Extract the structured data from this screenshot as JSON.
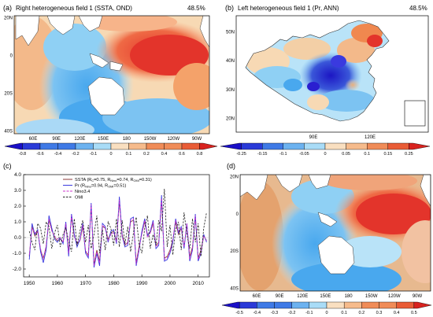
{
  "colors": {
    "cool_deep": "#2a1fd0",
    "cool_mid": "#49a8ee",
    "cool_light": "#b9e3f8",
    "warm_light": "#f7d9b4",
    "warm_mid": "#f0884f",
    "warm_deep": "#e3342b",
    "land": "#ffffff",
    "line_ssta": "#8b3a3a",
    "line_pr": "#3a3adf",
    "line_nino": "#cc33cc",
    "line_omi": "#222222"
  },
  "panels": {
    "a": {
      "label": "(a)",
      "title": "Right heterogeneous field 1 (SSTA, OND)",
      "percent": "48.5%",
      "lat_ticks": [
        "20N",
        "0",
        "20S",
        "40S"
      ],
      "lon_ticks": [
        "60E",
        "90E",
        "120E",
        "150E",
        "180",
        "150W",
        "120W",
        "90W"
      ],
      "colorbar": [
        "-0.8",
        "-0.6",
        "-0.4",
        "-0.2",
        "-0.1",
        "0",
        "0.1",
        "0.2",
        "0.4",
        "0.6",
        "0.8"
      ]
    },
    "b": {
      "label": "(b)",
      "title": "Left heterogeneous field 1 (Pr, ANN)",
      "percent": "48.5%",
      "lat_ticks": [
        "50N",
        "40N",
        "30N",
        "20N"
      ],
      "lon_ticks": [
        "90E",
        "120E"
      ],
      "colorbar": [
        "-0.25",
        "-0.15",
        "-0.1",
        "-0.05",
        "0",
        "0.05",
        "0.1",
        "0.15",
        "0.25"
      ]
    },
    "d": {
      "label": "(d)",
      "lat_ticks": [
        "20N",
        "0",
        "20S",
        "40S"
      ],
      "lon_ticks": [
        "60E",
        "90E",
        "120E",
        "150E",
        "180",
        "150W",
        "120W",
        "90W"
      ],
      "colorbar": [
        "-0.5",
        "-0.4",
        "-0.3",
        "-0.2",
        "-0.1",
        "0",
        "0.1",
        "0.2",
        "0.3",
        "0.4",
        "0.5"
      ]
    }
  },
  "chart_data": {
    "type": "line",
    "panel_label": "(c)",
    "xlim": [
      1948,
      2014
    ],
    "ylim": [
      -2.5,
      4.0
    ],
    "x_ticks": [
      1950,
      1960,
      1970,
      1980,
      1990,
      2000,
      2010
    ],
    "y_ticks": [
      "4.0",
      "3.0",
      "2.0",
      "1.0",
      "0.0",
      "-1.0",
      "-2.0"
    ],
    "legend": [
      {
        "name": "SSTA  (R",
        "sub1": "C",
        "mid": "=0.75, R",
        "sub2": "Nino",
        "mid2": "=0.74, R",
        "sub3": "OMI",
        "tail": "=0.31)"
      },
      {
        "name": "Pr  (R",
        "sub1": "Nino",
        "mid": "=0.94, R",
        "sub2": "OMI",
        "mid2": "=0.51)",
        "sub3": "",
        "tail": ""
      },
      {
        "name": "Nino3.4",
        "sub1": "",
        "mid": "",
        "sub2": "",
        "mid2": "",
        "sub3": "",
        "tail": ""
      },
      {
        "name": "OMI",
        "sub1": "",
        "mid": "",
        "sub2": "",
        "mid2": "",
        "sub3": "",
        "tail": ""
      }
    ],
    "x": [
      1950,
      1951,
      1952,
      1953,
      1954,
      1955,
      1956,
      1957,
      1958,
      1959,
      1960,
      1961,
      1962,
      1963,
      1964,
      1965,
      1966,
      1967,
      1968,
      1969,
      1970,
      1971,
      1972,
      1973,
      1974,
      1975,
      1976,
      1977,
      1978,
      1979,
      1980,
      1981,
      1982,
      1983,
      1984,
      1985,
      1986,
      1987,
      1988,
      1989,
      1990,
      1991,
      1992,
      1993,
      1994,
      1995,
      1996,
      1997,
      1998,
      1999,
      2000,
      2001,
      2002,
      2003,
      2004,
      2005,
      2006,
      2007,
      2008,
      2009,
      2010,
      2011,
      2012,
      2013
    ],
    "series": [
      {
        "name": "SSTA",
        "values": [
          -1.2,
          0.7,
          0.1,
          0.4,
          -0.8,
          -1.3,
          -0.6,
          1.1,
          0.5,
          0.0,
          -0.2,
          -0.1,
          -0.3,
          0.8,
          -0.9,
          1.3,
          0.1,
          -0.4,
          -0.2,
          0.7,
          -0.9,
          -1.1,
          2.0,
          -1.7,
          -0.8,
          -1.5,
          0.7,
          0.6,
          -0.1,
          0.3,
          0.4,
          -0.2,
          2.3,
          0.2,
          -0.5,
          -0.3,
          1.0,
          1.1,
          -1.6,
          -0.6,
          0.3,
          1.0,
          0.2,
          0.3,
          0.9,
          -0.5,
          -0.3,
          2.4,
          -1.3,
          -1.2,
          -0.8,
          -0.2,
          1.0,
          0.2,
          0.6,
          -0.6,
          0.8,
          -1.2,
          -0.6,
          1.3,
          -1.3,
          -0.8,
          0.1,
          -0.2
        ]
      },
      {
        "name": "Pr",
        "values": [
          -1.4,
          0.9,
          0.2,
          0.5,
          -0.9,
          -1.6,
          -0.8,
          1.4,
          0.6,
          -0.1,
          -0.3,
          0.0,
          -0.4,
          1.0,
          -1.2,
          1.5,
          0.2,
          -0.6,
          -0.1,
          0.9,
          -1.0,
          -1.3,
          2.2,
          -1.9,
          -1.0,
          -1.8,
          0.9,
          0.7,
          -0.3,
          0.4,
          0.5,
          -0.4,
          2.6,
          0.1,
          -0.6,
          -0.5,
          1.2,
          1.3,
          -1.8,
          -0.8,
          0.4,
          1.2,
          0.1,
          0.4,
          1.1,
          -0.7,
          -0.5,
          2.7,
          -1.5,
          -1.4,
          -1.0,
          -0.3,
          1.2,
          0.3,
          0.7,
          -0.7,
          0.9,
          -1.5,
          -0.8,
          1.5,
          -1.5,
          -1.0,
          0.2,
          -0.3
        ]
      },
      {
        "name": "Nino3.4",
        "values": [
          -1.1,
          0.6,
          0.3,
          0.4,
          -0.7,
          -1.4,
          -0.5,
          1.2,
          0.4,
          0.1,
          -0.1,
          0.0,
          -0.3,
          0.9,
          -1.0,
          1.4,
          0.0,
          -0.3,
          -0.2,
          0.8,
          -0.8,
          -1.2,
          2.1,
          -1.8,
          -0.9,
          -1.6,
          0.8,
          0.6,
          -0.2,
          0.2,
          0.3,
          -0.3,
          2.4,
          0.0,
          -0.4,
          -0.4,
          1.1,
          1.2,
          -1.7,
          -0.7,
          0.2,
          1.1,
          0.0,
          0.3,
          1.0,
          -0.6,
          -0.4,
          2.5,
          -1.4,
          -1.3,
          -0.9,
          -0.1,
          1.1,
          0.4,
          0.6,
          -0.6,
          0.9,
          -1.4,
          -0.7,
          1.4,
          -1.4,
          -0.9,
          0.1,
          -0.2
        ]
      },
      {
        "name": "OMI",
        "values": [
          0.4,
          -0.3,
          -0.8,
          0.9,
          0.6,
          -0.4,
          1.0,
          0.7,
          -0.7,
          0.3,
          0.8,
          -0.6,
          0.2,
          0.6,
          -0.2,
          -0.9,
          1.2,
          -0.5,
          0.4,
          1.1,
          -0.3,
          0.8,
          -0.7,
          0.2,
          1.4,
          -1.0,
          0.5,
          -0.8,
          1.0,
          0.6,
          -0.5,
          1.2,
          -0.6,
          1.1,
          -0.4,
          0.7,
          -0.9,
          0.3,
          1.3,
          -0.4,
          -1.0,
          0.6,
          1.4,
          -0.7,
          0.2,
          -0.5,
          1.1,
          0.4,
          3.1,
          -0.6,
          0.8,
          -1.1,
          0.5,
          1.0,
          -0.8,
          1.6,
          0.2,
          -0.7,
          1.2,
          -0.3,
          0.9,
          -1.2,
          0.6,
          1.6
        ]
      }
    ]
  }
}
